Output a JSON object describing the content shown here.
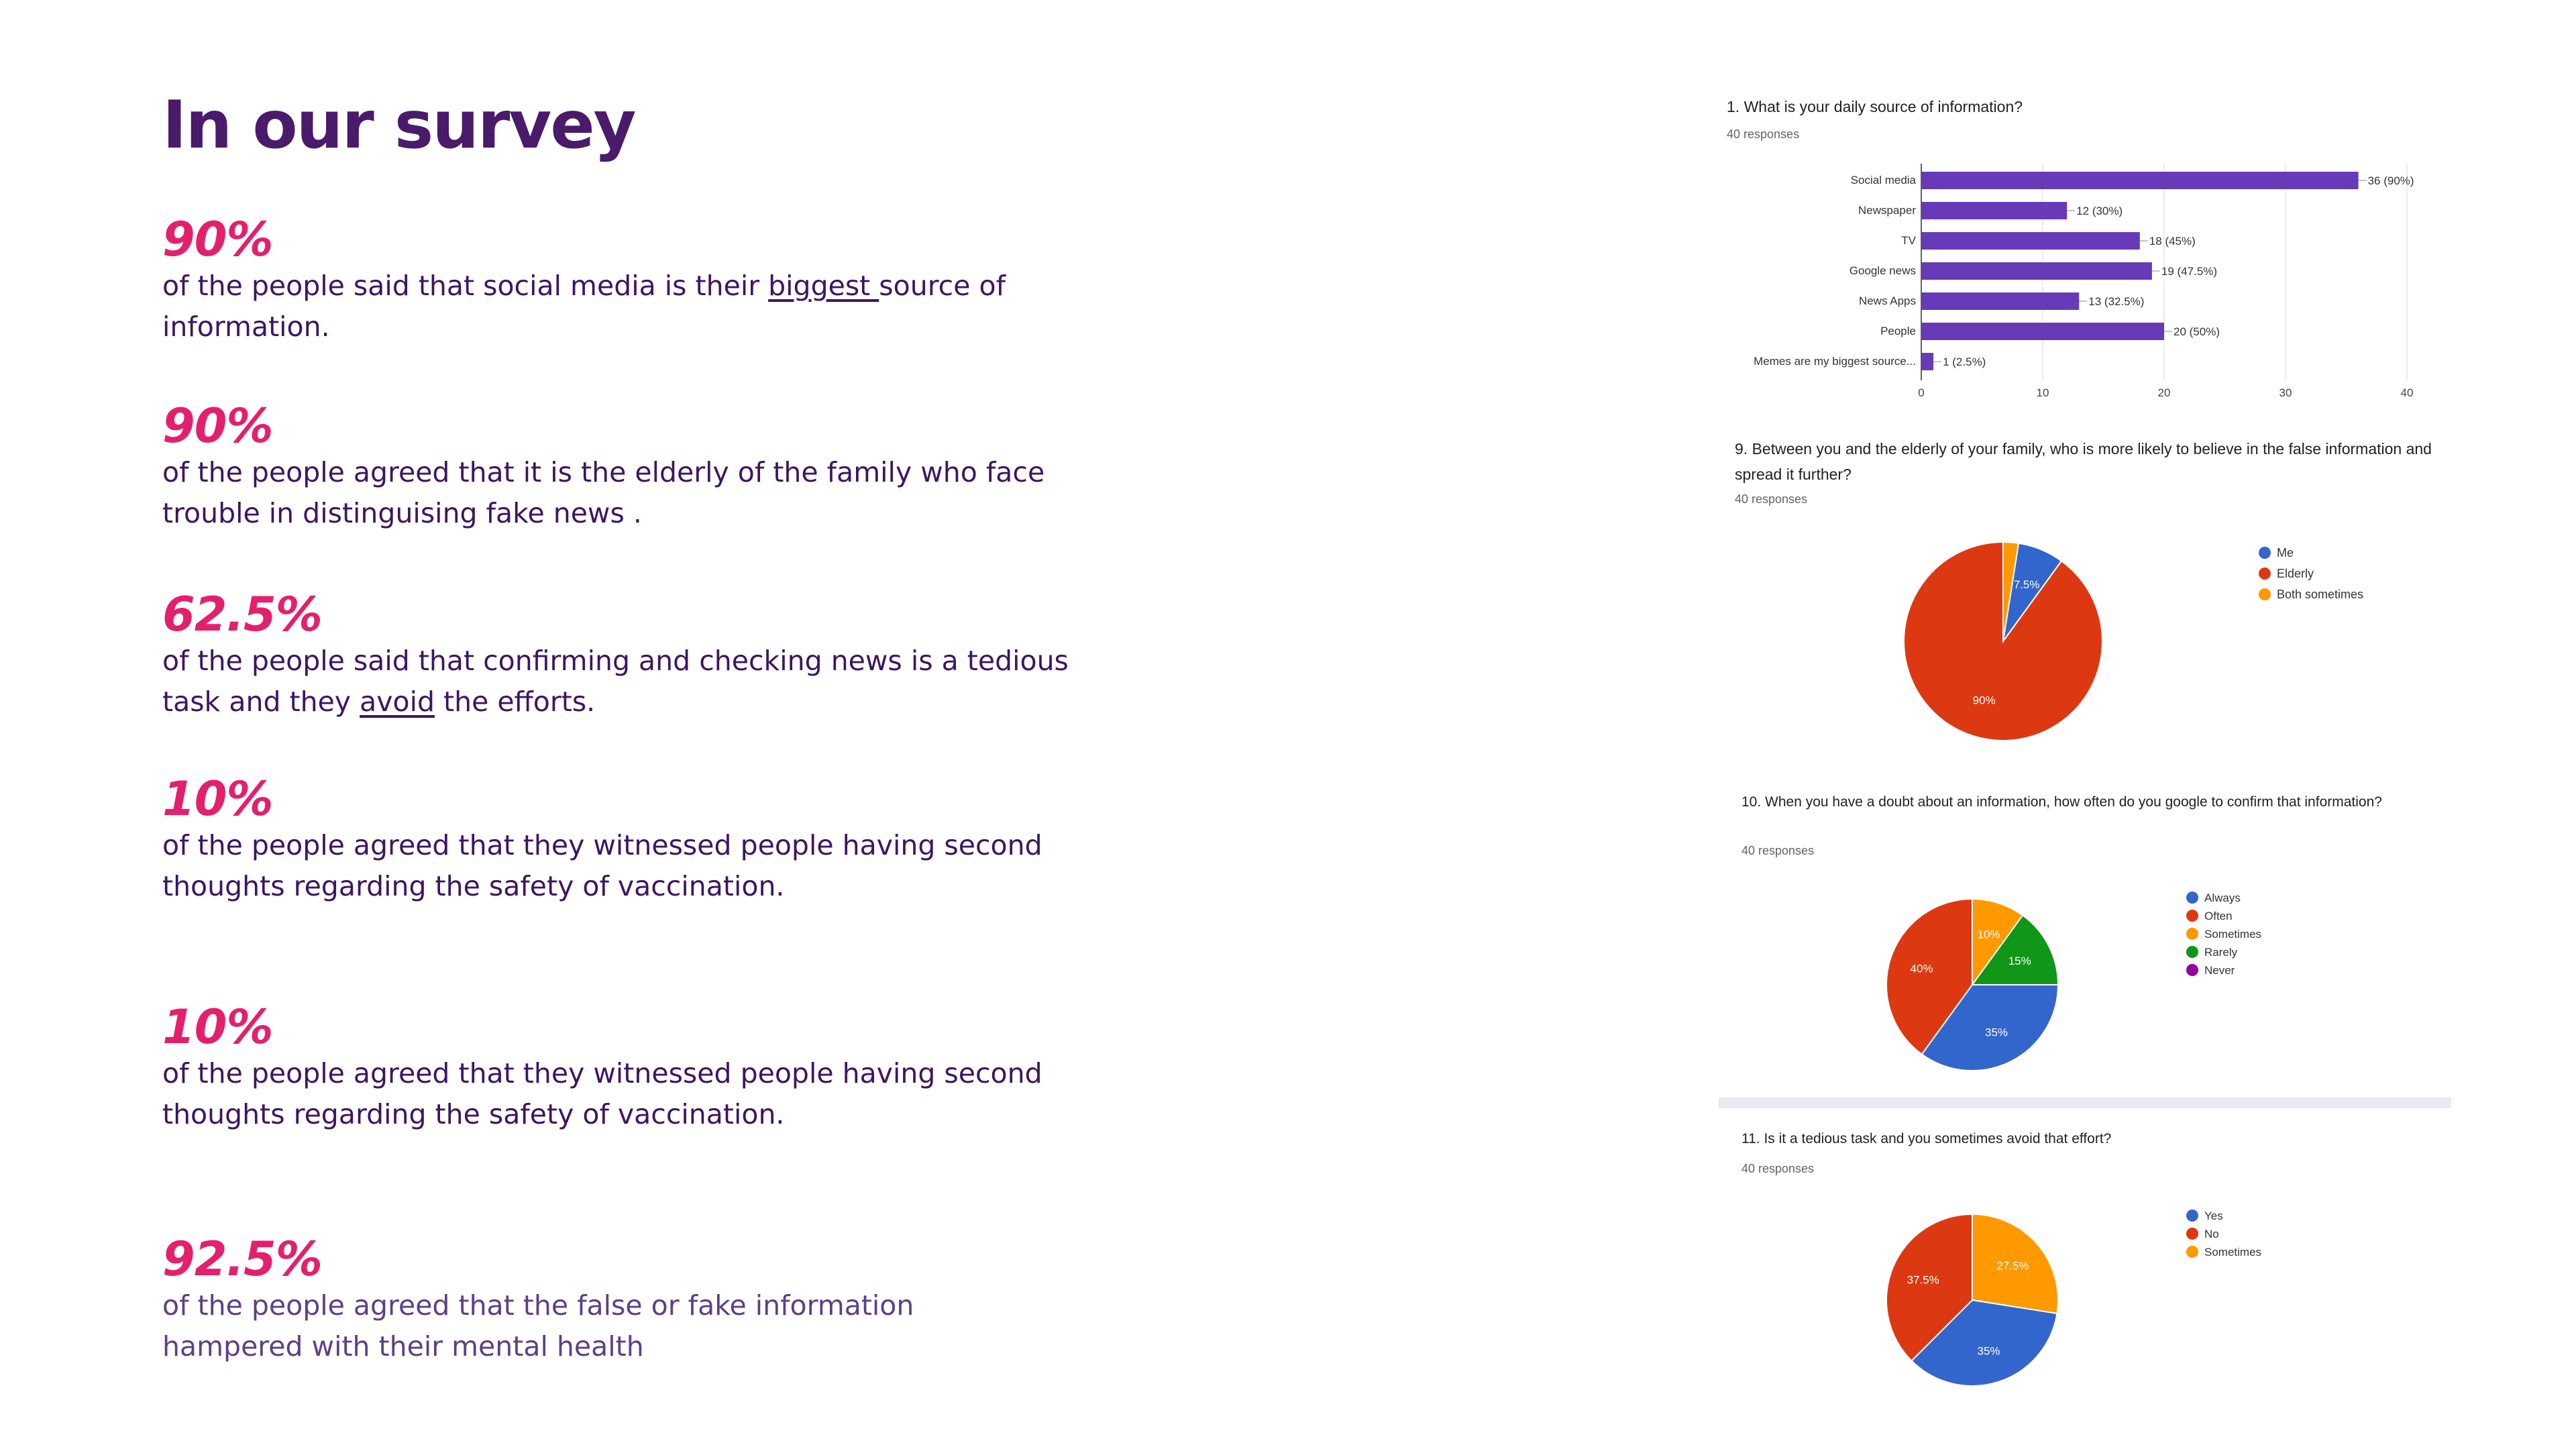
{
  "page": {
    "title": "In our survey"
  },
  "stats": [
    {
      "pct": "90%",
      "pre": "of the people said that social media is their ",
      "u": "biggest ",
      "post": "source of information."
    },
    {
      "pct": "90%",
      "pre": "of the people agreed that it is the elderly of the family who face trouble in distinguising fake news .",
      "u": "",
      "post": ""
    },
    {
      "pct": "62.5%",
      "pre": "of the people said that confirming and checking news is a tedious task and they ",
      "u": "avoid",
      "post": " the efforts."
    },
    {
      "pct": "10%",
      "pre": "of the people agreed that they witnessed people having second thoughts regarding the safety of vaccination.",
      "u": "",
      "post": ""
    },
    {
      "pct": "10%",
      "pre": "of the people agreed that they witnessed people having second thoughts regarding the safety of vaccination.",
      "u": "",
      "post": ""
    },
    {
      "pct": "92.5%",
      "pre": "of the people agreed that the false or fake information hampered with their mental health",
      "u": "",
      "post": ""
    }
  ],
  "chart_data": [
    {
      "type": "bar",
      "orientation": "horizontal",
      "title": "1. What is your daily source of information?",
      "responses": "40 responses",
      "categories": [
        "Social media",
        "Newspaper",
        "TV",
        "Google news",
        "News Apps",
        "People",
        "Memes are my biggest source..."
      ],
      "values": [
        36,
        12,
        18,
        19,
        13,
        20,
        1
      ],
      "labels": [
        "36 (90%)",
        "12 (30%)",
        "18 (45%)",
        "19 (47.5%)",
        "13 (32.5%)",
        "20 (50%)",
        "1 (2.5%)"
      ],
      "xticks": [
        "0",
        "10",
        "20",
        "30",
        "40"
      ],
      "xlim": [
        0,
        40
      ],
      "color": "#673ab7"
    },
    {
      "type": "pie",
      "title": "9. Between you and the elderly of your family, who is more likely to believe in the false information and spread it further?",
      "responses": "40 responses",
      "slices": [
        {
          "label": "Me",
          "value": 7.5,
          "color": "#3366cc",
          "text": "7.5%"
        },
        {
          "label": "Elderly",
          "value": 90,
          "color": "#dc3912",
          "text": "90%"
        },
        {
          "label": "Both sometimes",
          "value": 2.5,
          "color": "#ff9900",
          "text": ""
        }
      ]
    },
    {
      "type": "pie",
      "title": "10. When you have a doubt about an information, how often do you google to confirm that information?",
      "responses": "40 responses",
      "slices": [
        {
          "label": "Always",
          "value": 35,
          "color": "#3366cc",
          "text": "35%"
        },
        {
          "label": "Often",
          "value": 40,
          "color": "#dc3912",
          "text": "40%"
        },
        {
          "label": "Sometimes",
          "value": 10,
          "color": "#ff9900",
          "text": "10%"
        },
        {
          "label": "Rarely",
          "value": 15,
          "color": "#109618",
          "text": "15%"
        },
        {
          "label": "Never",
          "value": 0,
          "color": "#990099",
          "text": ""
        }
      ]
    },
    {
      "type": "pie",
      "title": "11. Is it a tedious task and you sometimes avoid that effort?",
      "responses": "40 responses",
      "slices": [
        {
          "label": "Yes",
          "value": 35,
          "color": "#3366cc",
          "text": "35%"
        },
        {
          "label": "No",
          "value": 37.5,
          "color": "#dc3912",
          "text": "37.5%"
        },
        {
          "label": "Sometimes",
          "value": 27.5,
          "color": "#ff9900",
          "text": "27.5%"
        }
      ]
    }
  ]
}
